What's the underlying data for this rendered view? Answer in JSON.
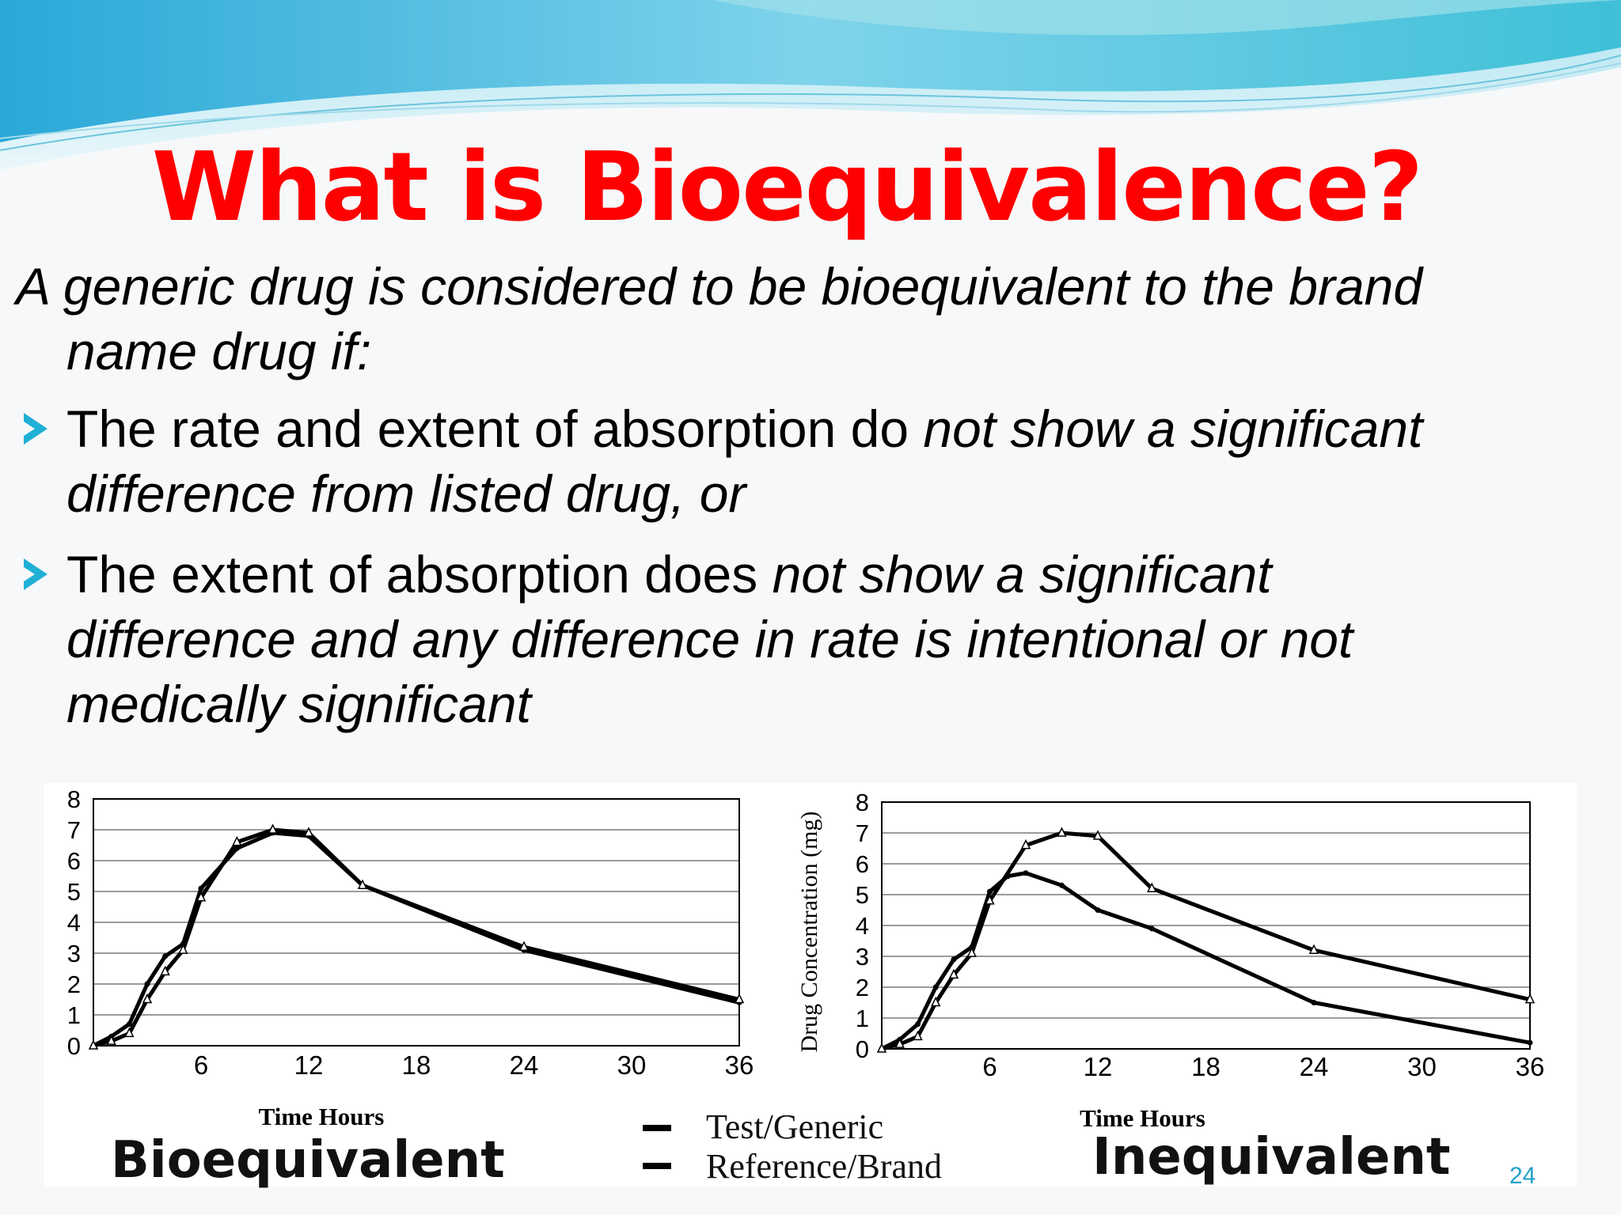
{
  "slide": {
    "title": "What is Bioequivalence?",
    "intro_line1": "A generic drug is considered to be bioequivalent to the brand",
    "intro_line2": "name drug if:",
    "bullet1_part1": " The rate and extent of absorption do ",
    "bullet1_part2_italic": "not show a significant",
    "bullet1_line2": "difference from listed drug, or",
    "bullet2_part1": "The extent of absorption does ",
    "bullet2_part2_italic": "not show a significant",
    "bullet2_line2": "difference and any difference in rate is intentional or not",
    "bullet2_line3": "medically significant",
    "page_number": "24",
    "accent_color": "#1fb0d6",
    "title_color": "#ff0000"
  },
  "legend": {
    "items": [
      "Test/Generic",
      "Reference/Brand"
    ]
  },
  "chart_data": [
    {
      "type": "line",
      "caption": "Bioequivalent",
      "xlabel": "Time Hours",
      "ylabel": "",
      "xlim": [
        0,
        36
      ],
      "ylim": [
        0,
        8
      ],
      "xticks": [
        6,
        12,
        18,
        24,
        30,
        36
      ],
      "yticks": [
        0,
        1,
        2,
        3,
        4,
        5,
        6,
        7,
        8
      ],
      "grid": true,
      "series": [
        {
          "name": "Test/Generic",
          "x": [
            0,
            1,
            2,
            3,
            4,
            5,
            6,
            8,
            10,
            12,
            15,
            24,
            36
          ],
          "y": [
            0,
            0.3,
            0.7,
            2.0,
            2.9,
            3.3,
            5.1,
            6.4,
            6.9,
            6.8,
            5.2,
            3.1,
            1.4
          ]
        },
        {
          "name": "Reference/Brand",
          "x": [
            0,
            1,
            2,
            3,
            4,
            5,
            6,
            8,
            10,
            12,
            15,
            24,
            36
          ],
          "y": [
            0,
            0.15,
            0.4,
            1.5,
            2.4,
            3.1,
            4.8,
            6.6,
            7.0,
            6.9,
            5.2,
            3.2,
            1.5
          ]
        }
      ]
    },
    {
      "type": "line",
      "caption": "Inequivalent",
      "xlabel": "Time Hours",
      "ylabel": "Drug Concentration (mg)",
      "xlim": [
        0,
        36
      ],
      "ylim": [
        0,
        8
      ],
      "xticks": [
        6,
        12,
        18,
        24,
        30,
        36
      ],
      "yticks": [
        0,
        1,
        2,
        3,
        4,
        5,
        6,
        7,
        8
      ],
      "grid": true,
      "series": [
        {
          "name": "Test/Generic",
          "x": [
            0,
            1,
            2,
            3,
            4,
            5,
            6,
            7,
            8,
            10,
            12,
            15,
            24,
            36
          ],
          "y": [
            0,
            0.3,
            0.8,
            2.0,
            2.9,
            3.3,
            5.1,
            5.6,
            5.7,
            5.3,
            4.5,
            3.9,
            1.5,
            0.2
          ]
        },
        {
          "name": "Reference/Brand",
          "x": [
            0,
            1,
            2,
            3,
            4,
            5,
            6,
            8,
            10,
            12,
            15,
            24,
            36
          ],
          "y": [
            0,
            0.15,
            0.4,
            1.5,
            2.4,
            3.1,
            4.8,
            6.6,
            7.0,
            6.9,
            5.2,
            3.2,
            1.6
          ]
        }
      ]
    }
  ]
}
